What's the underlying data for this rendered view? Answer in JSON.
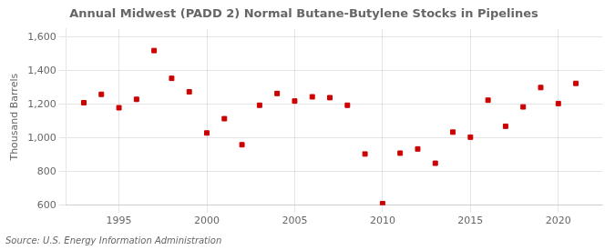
{
  "chart_data": {
    "type": "scatter",
    "title": "Annual Midwest (PADD 2) Normal Butane-Butylene Stocks in Pipelines",
    "ylabel": "Thousand Barrels",
    "source": "Source: U.S. Energy Information Administration",
    "x": [
      1993,
      1994,
      1995,
      1996,
      1997,
      1998,
      1999,
      2000,
      2001,
      2002,
      2003,
      2004,
      2005,
      2006,
      2007,
      2008,
      2009,
      2010,
      2011,
      2012,
      2013,
      2014,
      2015,
      2016,
      2017,
      2018,
      2019,
      2020,
      2021
    ],
    "values": [
      1210,
      1260,
      1180,
      1230,
      1520,
      1355,
      1275,
      1030,
      1115,
      960,
      1195,
      1265,
      1220,
      1245,
      1240,
      1195,
      905,
      610,
      910,
      935,
      850,
      1035,
      1005,
      1225,
      1070,
      1185,
      1300,
      1205,
      1325
    ],
    "color": "#cc0000",
    "marker": "square",
    "xlim": [
      1992,
      2022.5
    ],
    "xticks": [
      1995,
      2000,
      2005,
      2010,
      2015,
      2020
    ],
    "ylim": [
      600,
      1650
    ],
    "yticks": [
      600,
      800,
      {
        "value": 1000,
        "label": "1,000"
      },
      {
        "value": 1200,
        "label": "1,200"
      },
      {
        "value": 1400,
        "label": "1,400"
      },
      {
        "value": 1600,
        "label": "1,600"
      }
    ],
    "grid": true
  }
}
